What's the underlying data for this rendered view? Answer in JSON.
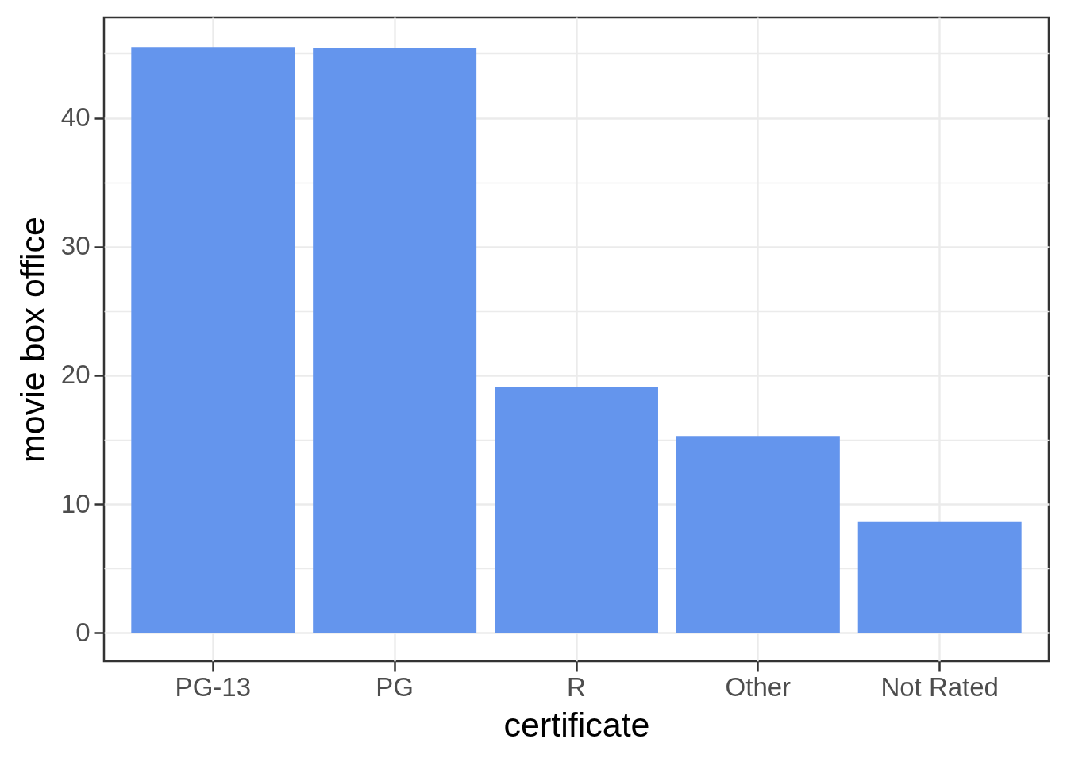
{
  "chart_data": {
    "type": "bar",
    "xlabel": "certificate",
    "ylabel": "movie box office",
    "categories": [
      "PG-13",
      "PG",
      "R",
      "Other",
      "Not Rated"
    ],
    "values": [
      45.5,
      45.4,
      19.1,
      15.3,
      8.6
    ],
    "color": "#6495ed",
    "ylim": [
      -2.2,
      47.8
    ],
    "yticks": [
      0,
      {
        "value": 5,
        "label": null
      },
      10,
      {
        "value": 15,
        "label": null
      },
      20,
      {
        "value": 25,
        "label": null
      },
      30,
      {
        "value": 35,
        "label": null
      },
      40,
      {
        "value": 45,
        "label": null
      }
    ],
    "grid": true
  }
}
